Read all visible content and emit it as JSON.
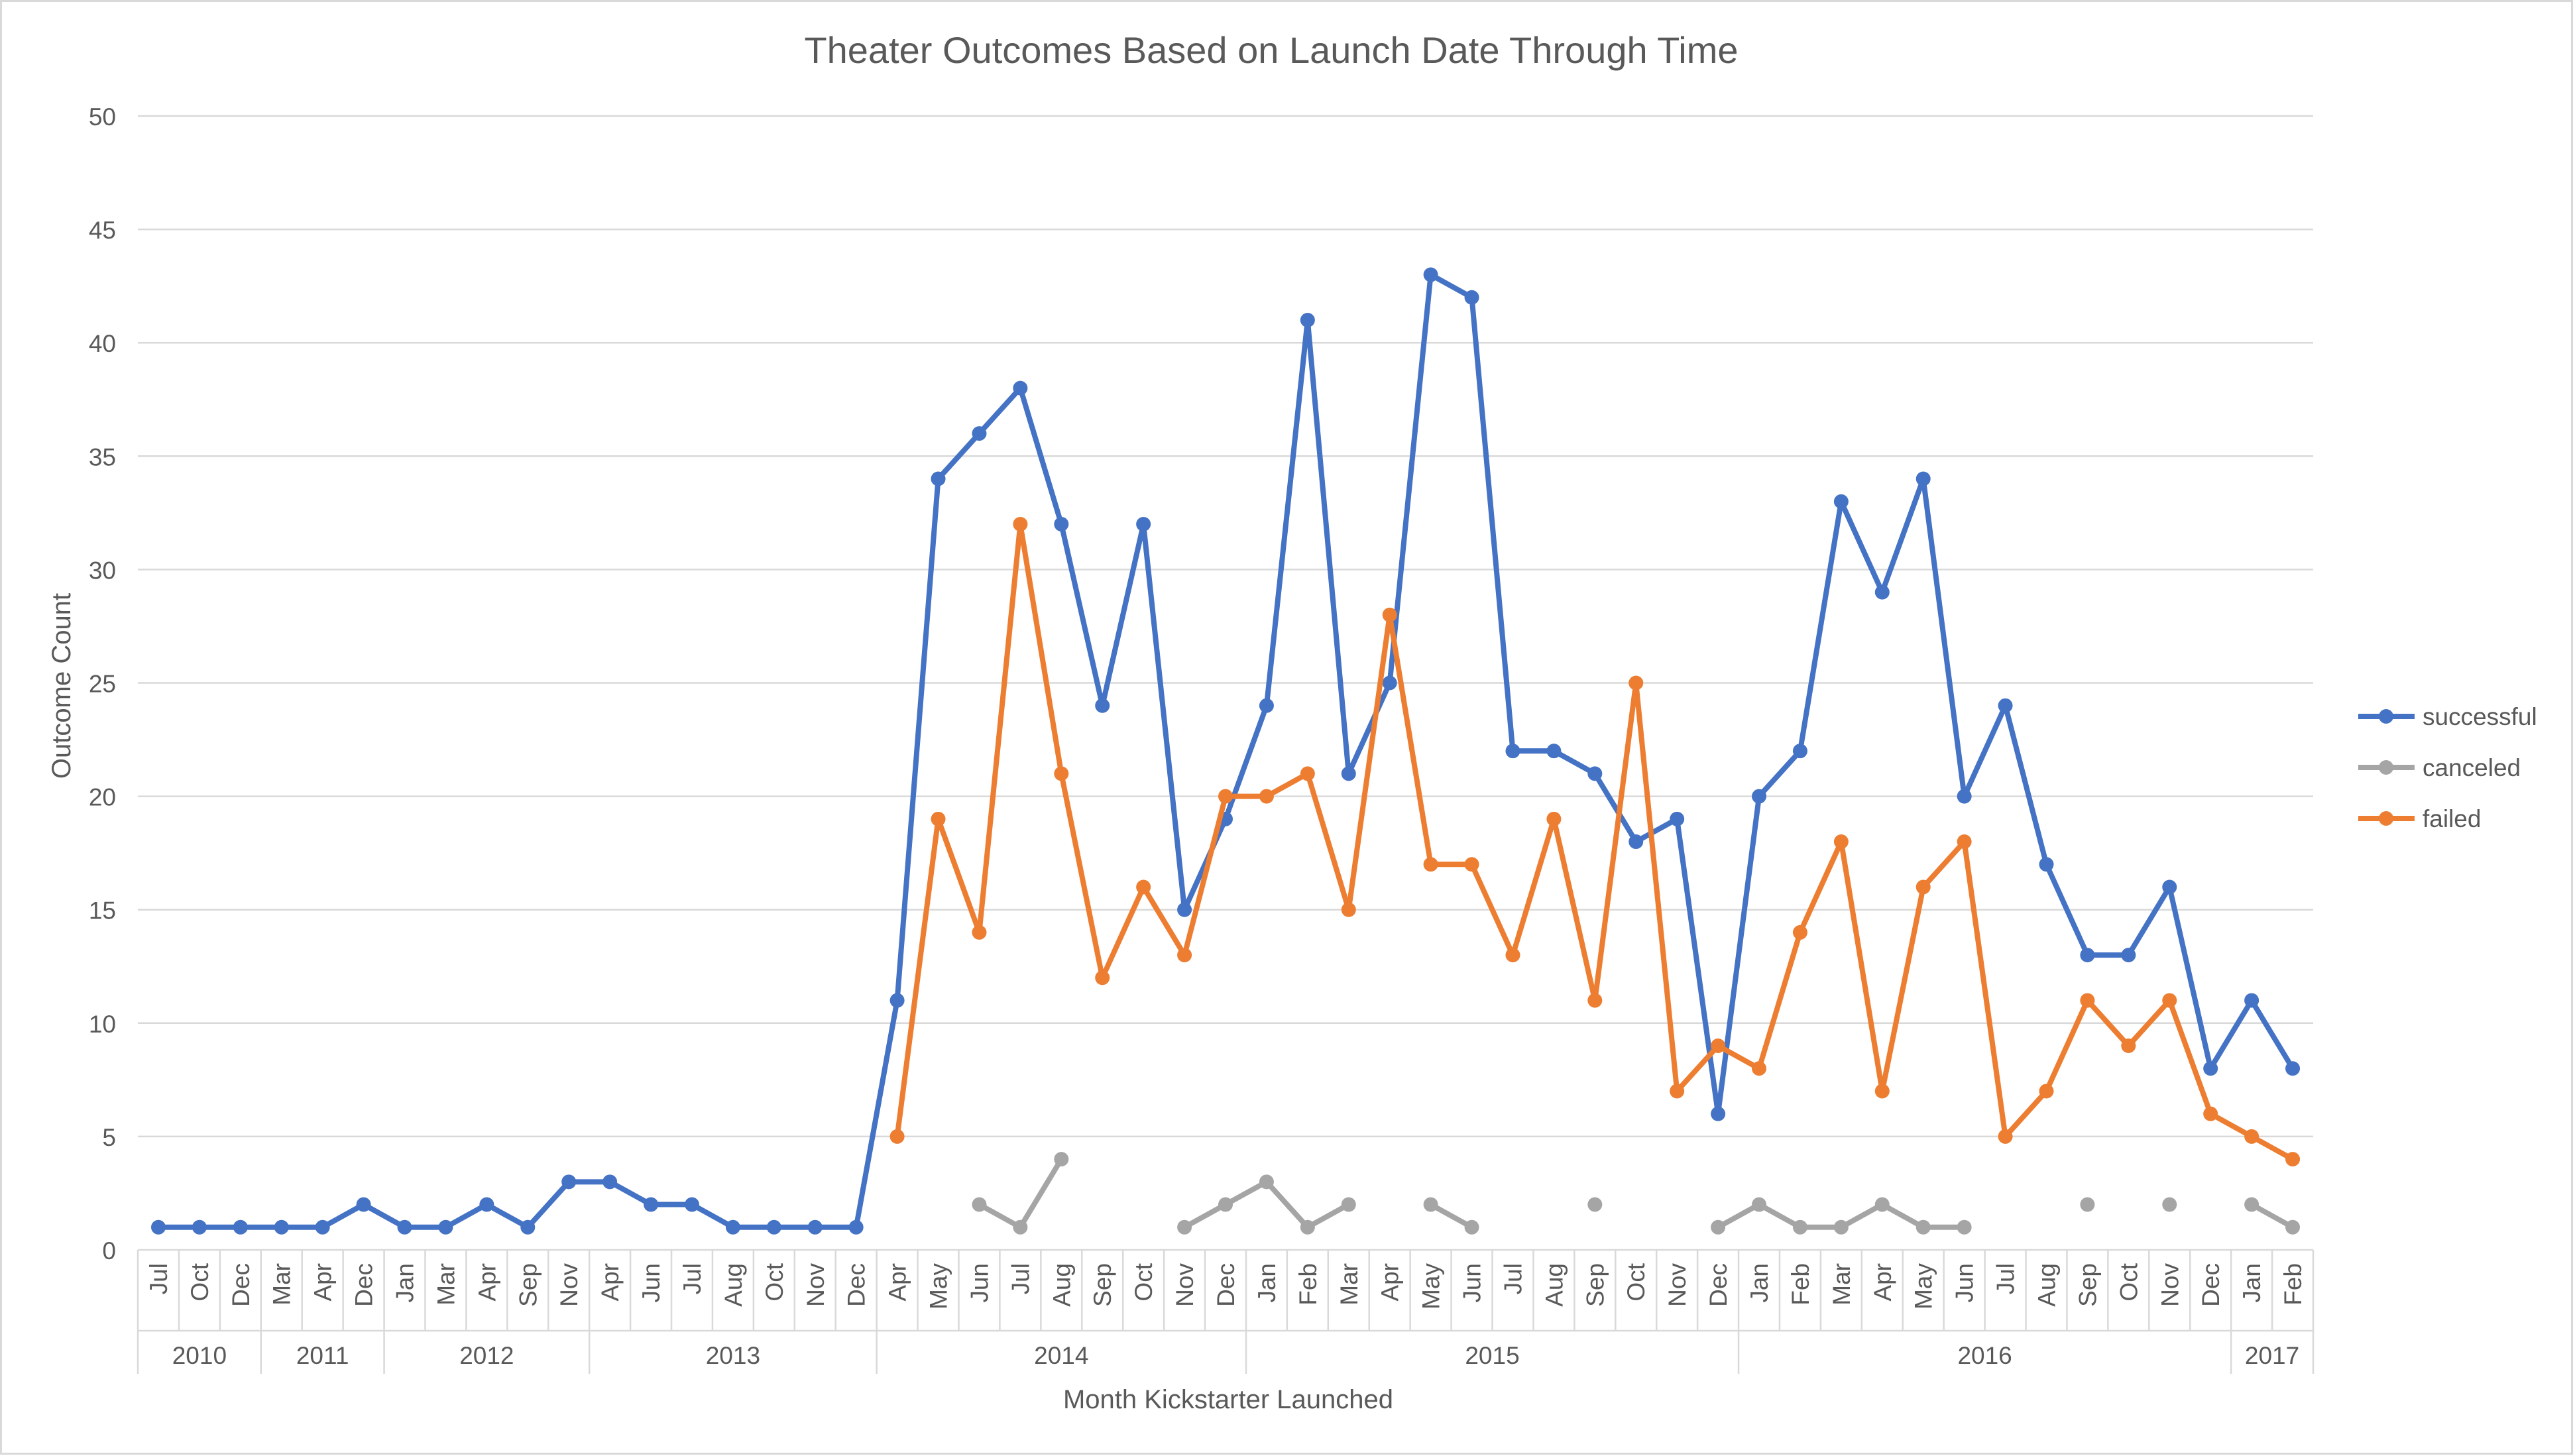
{
  "chart_data": {
    "type": "line",
    "title": "Theater Outcomes Based on Launch Date Through Time",
    "xlabel": "Month Kickstarter Launched",
    "ylabel": "Outcome Count",
    "ylim": [
      0,
      50
    ],
    "yticks": [
      0,
      5,
      10,
      15,
      20,
      25,
      30,
      35,
      40,
      45,
      50
    ],
    "grid": true,
    "legend_position": "right",
    "categories": [
      "Jul",
      "Oct",
      "Dec",
      "Mar",
      "Apr",
      "Dec",
      "Jan",
      "Mar",
      "Apr",
      "Sep",
      "Nov",
      "Apr",
      "Jun",
      "Jul",
      "Aug",
      "Oct",
      "Nov",
      "Dec",
      "Apr",
      "May",
      "Jun",
      "Jul",
      "Aug",
      "Sep",
      "Oct",
      "Nov",
      "Dec",
      "Jan",
      "Feb",
      "Mar",
      "Apr",
      "May",
      "Jun",
      "Jul",
      "Aug",
      "Sep",
      "Oct",
      "Nov",
      "Dec",
      "Jan",
      "Feb",
      "Mar",
      "Apr",
      "May",
      "Jun",
      "Jul",
      "Aug",
      "Sep",
      "Oct",
      "Nov",
      "Dec",
      "Jan",
      "Feb"
    ],
    "year_groups": [
      {
        "label": "2010",
        "start": 0,
        "end": 2
      },
      {
        "label": "2011",
        "start": 3,
        "end": 5
      },
      {
        "label": "2012",
        "start": 6,
        "end": 10
      },
      {
        "label": "2013",
        "start": 11,
        "end": 17
      },
      {
        "label": "2014",
        "start": 18,
        "end": 26
      },
      {
        "label": "2015",
        "start": 27,
        "end": 38
      },
      {
        "label": "2016",
        "start": 39,
        "end": 50
      },
      {
        "label": "2017",
        "start": 51,
        "end": 52
      }
    ],
    "series": [
      {
        "name": "successful",
        "color": "#4472c4",
        "values": [
          1,
          1,
          1,
          1,
          1,
          2,
          1,
          1,
          2,
          1,
          3,
          3,
          2,
          2,
          1,
          1,
          1,
          1,
          11,
          34,
          36,
          38,
          32,
          24,
          32,
          15,
          19,
          24,
          41,
          21,
          25,
          43,
          42,
          22,
          22,
          21,
          18,
          19,
          6,
          20,
          22,
          33,
          29,
          34,
          20,
          24,
          17,
          13,
          13,
          16,
          8,
          11,
          8
        ]
      },
      {
        "name": "canceled",
        "color": "#a5a5a5",
        "values": [
          null,
          null,
          null,
          null,
          null,
          null,
          null,
          null,
          null,
          null,
          null,
          null,
          null,
          null,
          null,
          null,
          null,
          null,
          null,
          null,
          2,
          1,
          4,
          null,
          null,
          1,
          2,
          3,
          1,
          2,
          null,
          2,
          1,
          null,
          null,
          2,
          null,
          null,
          1,
          2,
          1,
          1,
          2,
          1,
          1,
          null,
          null,
          2,
          null,
          2,
          null,
          2,
          1
        ]
      },
      {
        "name": "failed",
        "color": "#ed7d31",
        "values": [
          null,
          null,
          null,
          null,
          null,
          null,
          null,
          null,
          null,
          null,
          null,
          null,
          null,
          null,
          null,
          null,
          null,
          null,
          5,
          19,
          14,
          32,
          21,
          12,
          16,
          13,
          20,
          20,
          21,
          15,
          28,
          17,
          17,
          13,
          19,
          11,
          25,
          7,
          9,
          8,
          14,
          18,
          7,
          16,
          18,
          5,
          7,
          11,
          9,
          11,
          6,
          5,
          4
        ]
      }
    ]
  }
}
